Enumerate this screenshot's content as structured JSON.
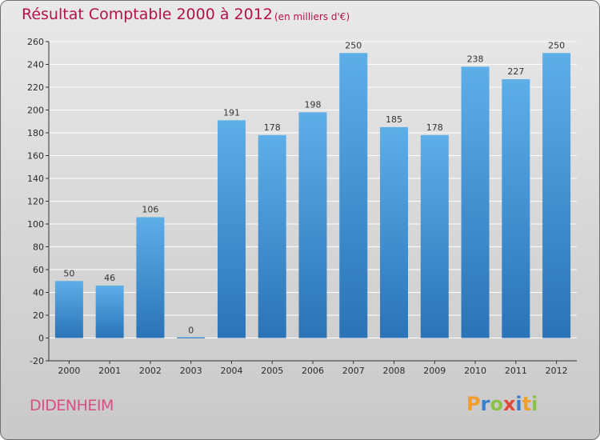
{
  "header": {
    "title": "Résultat Comptable 2000 à 2012",
    "subtitle": "(en milliers d'€)"
  },
  "footer": {
    "place": "DIDENHEIM",
    "logo_letters": [
      {
        "char": "P",
        "color": "#f0a02a"
      },
      {
        "char": "r",
        "color": "#3a7fcf"
      },
      {
        "char": "o",
        "color": "#8bc34a"
      },
      {
        "char": "x",
        "color": "#e0483a"
      },
      {
        "char": "i",
        "color": "#3a7fcf"
      },
      {
        "char": "t",
        "color": "#f0a02a"
      },
      {
        "char": "i",
        "color": "#8bc34a"
      }
    ]
  },
  "colors": {
    "bar": "#3d8fd0",
    "bar_light": "#5aaae6",
    "bar_dark": "#2a74b8",
    "grid": "#ffffff",
    "axis": "#333333"
  },
  "chart_data": {
    "type": "bar",
    "title": "Résultat Comptable 2000 à 2012",
    "subtitle": "(en milliers d'€)",
    "xlabel": "",
    "ylabel": "",
    "categories": [
      "2000",
      "2001",
      "2002",
      "2003",
      "2004",
      "2005",
      "2006",
      "2007",
      "2008",
      "2009",
      "2010",
      "2011",
      "2012"
    ],
    "values": [
      50,
      46,
      106,
      0,
      191,
      178,
      198,
      250,
      185,
      178,
      238,
      227,
      250
    ],
    "ylim": [
      -20,
      260
    ],
    "yticks": [
      -20,
      0,
      20,
      40,
      60,
      80,
      100,
      120,
      140,
      160,
      180,
      200,
      220,
      240,
      260
    ],
    "grid": true,
    "legend": "none"
  }
}
